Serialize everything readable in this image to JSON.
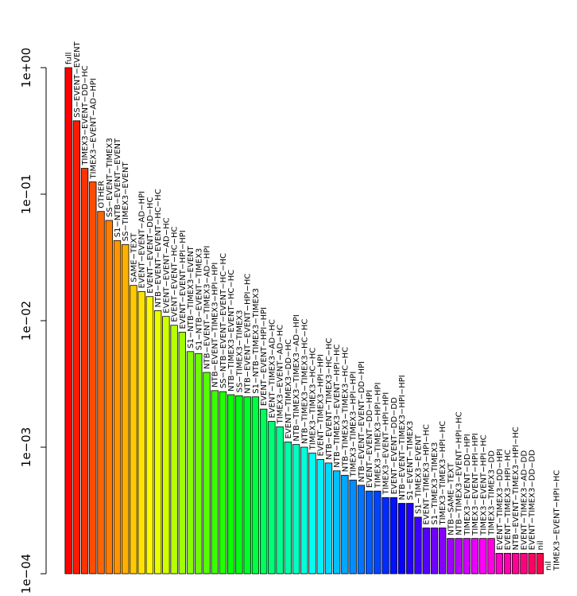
{
  "chart_data": {
    "type": "bar",
    "title": "",
    "xlabel": "",
    "ylabel": "",
    "scale": "log10",
    "ylim": [
      0.0001,
      1
    ],
    "grid": false,
    "legend": "none",
    "bar_colors": "rainbow",
    "y_ticks": [
      {
        "value": 0.0001,
        "label": "1e−04"
      },
      {
        "value": 0.001,
        "label": "1e−03"
      },
      {
        "value": 0.01,
        "label": "1e−02"
      },
      {
        "value": 0.1,
        "label": "1e−01"
      },
      {
        "value": 1,
        "label": "1e+00"
      }
    ],
    "categories": [
      "full",
      "SS−EVENT−EVENT",
      "TIMEX3−EVENT−DD−HC",
      "TIMEX3−EVENT−AD−HPI",
      "OTHER",
      "SS−EVENT−TIMEX3",
      "S1−NTB−EVENT−EVENT",
      "SS−TIMEX3−EVENT",
      "SAME−TEXT",
      "EVENT−EVENT−AD−HPI",
      "EVENT−EVENT−DD−HC",
      "NTB−EVENT−EVENT−HC−HC",
      "EVENT−EVENT−AD−HC",
      "EVENT−EVENT−HC−HC",
      "EVENT−EVENT−HPI−HPI",
      "S1−NTB−TIMEX3−EVENT",
      "S1−NTB−EVENT−TIMEX3",
      "NTB−EVENT−TIMEX3−AD−HPI",
      "NTB−EVENT−TIMEX3−HPI−HPI",
      "SS−NTB−EVENT−EVENT−HC−HC",
      "NTB−TIMEX3−EVENT−HC−HC",
      "SS−TIMEX3−TIMEX3",
      "NTB−EVENT−EVENT−HPI−HC",
      "S1−NTB−TIMEX3−TIMEX3",
      "EVENT−EVENT−HPI−HPI",
      "EVENT−TIMEX3−AD−HC",
      "TIMEX3−EVENT−AD−HC",
      "EVENT−TIMEX3−DD−HC",
      "NTB−TIMEX3−TIMEX3−AD−HPI",
      "NTB−TIMEX3−TIMEX3−HC−HC",
      "TIMEX3−TIMEX3−HC−HC",
      "EVENT−TIMEX3−HPI−HPI",
      "NTB−EVENT−TIMEX3−HC−HC",
      "NTB−TIMEX3−EVENT−HPI−HC",
      "NTB−TIMEX3−TIMEX3−HC−HC",
      "TIMEX3−TIMEX3−HPI−HPI",
      "NTB−EVENT−EVENT−DD−HPI",
      "EVENT−EVENT−DD−HPI",
      "TIMEX3−TIMEX3−HPI−HPI",
      "TIMEX3−EVENT−HPI−HPI",
      "EVENT−EVENT−DD−DD",
      "NTB−EVENT−TIMEX3−HPI−HPI",
      "S1−EVENT−TIMEX3",
      "S1−TIMEX3−EVENT",
      "EVENT−TIMEX3−HPI−HC",
      "S1−TIMEX3−TIMEX3",
      "TIMEX3−TIMEX3−HPI−HC",
      "NTB−SAME−TEXT",
      "NTB−TIMEX3−EVENT−HPI−HC",
      "TIMEX3−EVENT−DD−HPI",
      "TIMEX3−EVENT−HPI−HPI",
      "TIMEX3−EVENT−HPI−HC",
      "TIMEX3−TIMEX3−DD",
      "EVENT−TIMEX3−DD−HPI",
      "EVENT−TIMEX3−HPI−HC",
      "NTB−EVENT−TIMEX3−HPI−HC",
      "EVENT−TIMEX3−AD−DD",
      "EVENT−TIMEX3−DD−DD",
      "nil",
      "nil",
      "TIMEX3−EVENT−HPI−HC"
    ],
    "values": [
      1.0,
      0.38,
      0.16,
      0.125,
      0.073,
      0.062,
      0.043,
      0.04,
      0.019,
      0.017,
      0.0155,
      0.012,
      0.0108,
      0.0092,
      0.0081,
      0.0057,
      0.0055,
      0.0039,
      0.0028,
      0.00275,
      0.0026,
      0.00255,
      0.0025,
      0.0025,
      0.002,
      0.0016,
      0.00145,
      0.0011,
      0.00105,
      0.001,
      0.0009,
      0.0008,
      0.00075,
      0.00065,
      0.0006,
      0.00055,
      0.0005,
      0.00045,
      0.00045,
      0.0004,
      0.0004,
      0.00036,
      0.00036,
      0.00028,
      0.00023,
      0.00023,
      0.00023,
      0.00019,
      0.00019,
      0.00019,
      0.00019,
      0.00019,
      0.00019,
      0.000145,
      0.000145,
      0.000145,
      0.000145,
      0.000145,
      0.000145,
      0.0001,
      0.0001
    ]
  }
}
